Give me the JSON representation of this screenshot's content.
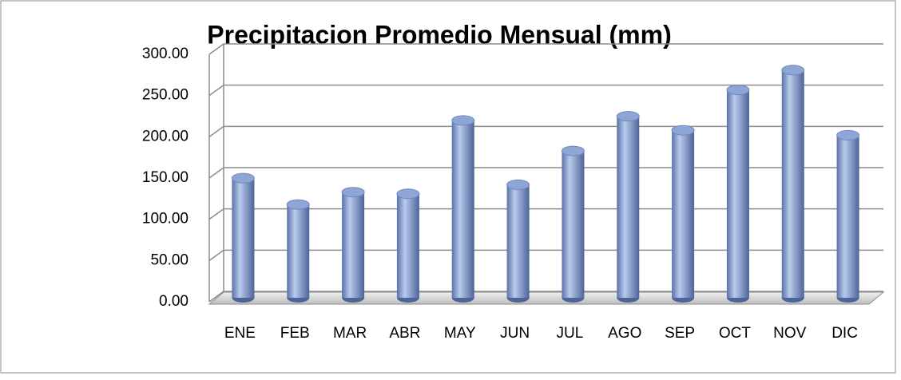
{
  "chart_data": {
    "type": "bar",
    "title": "Precipitacion Promedio Mensual (mm)",
    "categories": [
      "ENE",
      "FEB",
      "MAR",
      "ABR",
      "MAY",
      "JUN",
      "JUL",
      "AGO",
      "SEP",
      "OCT",
      "NOV",
      "DIC"
    ],
    "values": [
      145,
      113,
      128,
      126,
      215,
      137,
      178,
      220,
      203,
      252,
      276,
      197
    ],
    "color": "#8ea6d6",
    "ylim": [
      0,
      300
    ],
    "yticks": [
      {
        "value": 0,
        "label": "0.00"
      },
      {
        "value": 50,
        "label": "50.00"
      },
      {
        "value": 100,
        "label": "100.00"
      },
      {
        "value": 150,
        "label": "150.00"
      },
      {
        "value": 200,
        "label": "200.00"
      },
      {
        "value": 250,
        "label": "250.00"
      },
      {
        "value": 300,
        "label": "300.00"
      }
    ],
    "grid": true
  }
}
